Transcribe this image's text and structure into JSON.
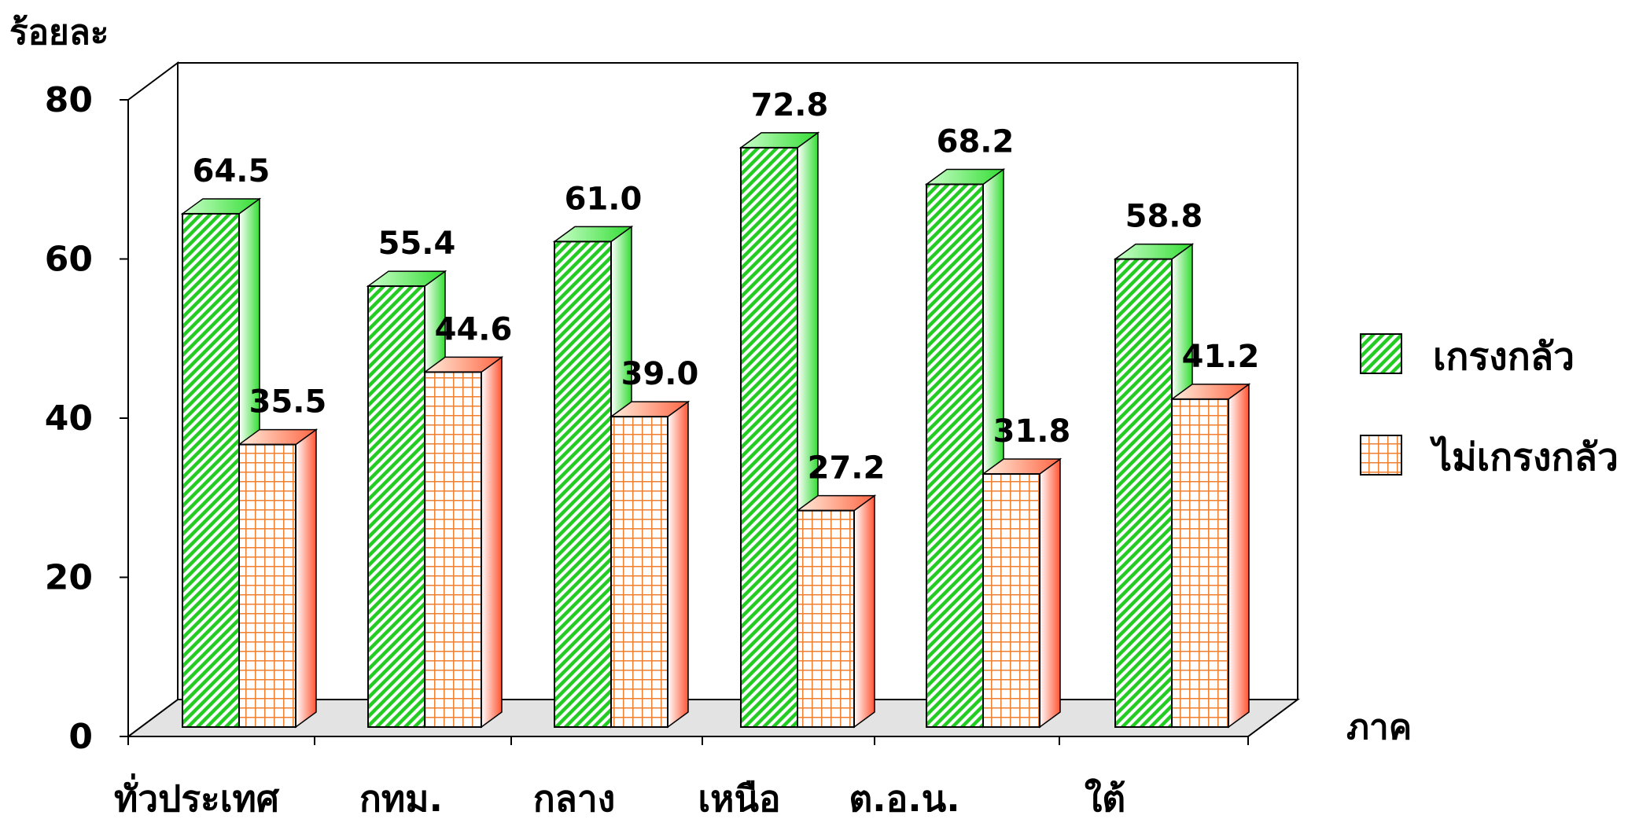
{
  "chart_data": {
    "type": "bar",
    "title": "",
    "ylabel": "ร้อยละ",
    "xlabel": "ภาค",
    "ylim": [
      0,
      80
    ],
    "yticks": [
      0,
      20,
      40,
      60,
      80
    ],
    "categories": [
      "ทั่วประเทศ",
      "กทม.",
      "กลาง",
      "เหนือ",
      "ต.อ.น.",
      "ใต้"
    ],
    "series": [
      {
        "name": "เกรงกลัว",
        "values": [
          64.5,
          55.4,
          61.0,
          72.8,
          68.2,
          58.8
        ],
        "labels": [
          "64.5",
          "55.4",
          "61.0",
          "72.8",
          "68.2",
          "58.8"
        ],
        "pattern": "diagonal-stripes",
        "color": "#22cc22"
      },
      {
        "name": "ไม่เกรงกลัว",
        "values": [
          35.5,
          44.6,
          39.0,
          27.2,
          31.8,
          41.2
        ],
        "labels": [
          "35.5",
          "44.6",
          "39.0",
          "27.2",
          "31.8",
          "41.2"
        ],
        "pattern": "grid",
        "color": "#ff6633"
      }
    ],
    "legend": "right",
    "grid": false,
    "style": "3d-bars",
    "floor_color": "#e3e3e3"
  }
}
